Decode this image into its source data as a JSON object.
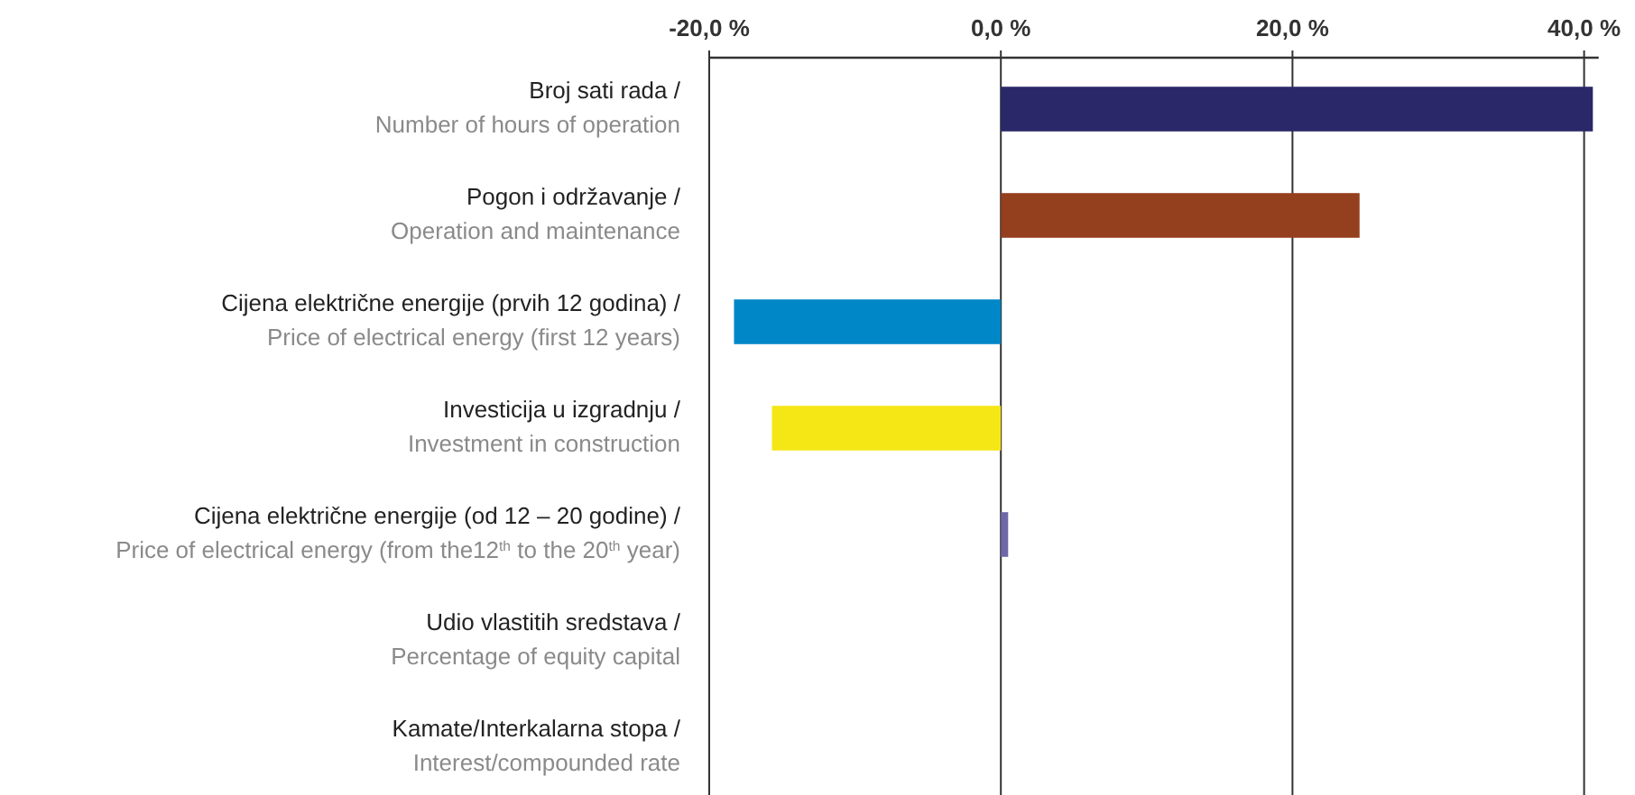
{
  "chart_data": {
    "type": "bar",
    "orientation": "horizontal",
    "categories": [
      "Broj sati rada /\nNumber of hours of operation",
      "Pogon i održavanje /\nOperation and maintenance",
      "Cijena električne energije (prvih 12 godina) /\nPrice of electrical energy (first 12 years)",
      "Investicija u izgradnju /\nInvestment in construction",
      "Cijena električne energije (od 12 – 20 godine) /\nPrice of electrical energy (from the12$^{th}$ to the 20$^{th}$ year)",
      "Udio vlastitih sredstava /\nPercentage of equity capital",
      "Kamate/Interkalarna stopa /\nInterest/compounded rate"
    ],
    "values": [
      40.6,
      24.6,
      -18.3,
      -15.7,
      0.5,
      0,
      0
    ],
    "colors": [
      "#2a2868",
      "#943f1e",
      "#0087c8",
      "#f5e616",
      "#6e68a8",
      "#888888",
      "#888888"
    ],
    "xlim": [
      -20,
      41
    ],
    "xticks": [
      {
        "value": -20,
        "label": "-20,0 %"
      },
      {
        "value": 0,
        "label": "0,0 %"
      },
      {
        "value": 20,
        "label": "20,0 %"
      },
      {
        "value": 40,
        "label": "40,0 %"
      }
    ],
    "grid": "x"
  }
}
